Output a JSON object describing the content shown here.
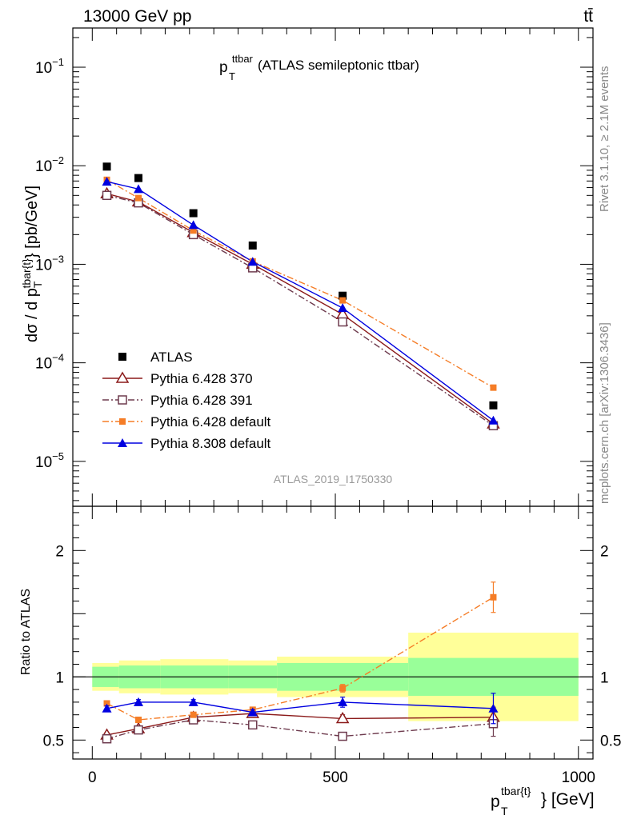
{
  "header": {
    "left": "13000 GeV pp",
    "right": "tt̄"
  },
  "side_labels": {
    "rivet": "Rivet 3.1.10, ≥ 2.1M events",
    "site": "mcplots.cern.ch [arXiv:1306.3436]"
  },
  "chart_data": {
    "type": "line",
    "title_main": "p",
    "title_sup": "ttbar",
    "title_sub": "T",
    "title_suffix": " (ATLAS semileptonic ttbar)",
    "analysis_id": "ATLAS_2019_I1750330",
    "ylabel": "dσ / d p_T^{tbar{t}} [pb/GeV]",
    "ratio_ylabel": "Ratio to ATLAS",
    "xlabel_main": "p",
    "xlabel_sup": "tbar{t}",
    "xlabel_sub": "T",
    "xlabel_unit": "} [GeV]",
    "xlim": [
      -40,
      1030
    ],
    "ylim_main": [
      3.5e-06,
      0.25
    ],
    "ylim_ratio": [
      0.35,
      2.35
    ],
    "x_ticks": [
      0,
      500,
      1000
    ],
    "main_y_ticks": [
      {
        "value": 0.1,
        "base": "10",
        "exp": "−1"
      },
      {
        "value": 0.01,
        "base": "10",
        "exp": "−2"
      },
      {
        "value": 0.001,
        "base": "10",
        "exp": "−3"
      },
      {
        "value": 0.0001,
        "base": "10",
        "exp": "−4"
      },
      {
        "value": 1e-05,
        "base": "10",
        "exp": "−5"
      }
    ],
    "ratio_y_ticks": [
      0.5,
      1,
      2
    ],
    "x": [
      30,
      95,
      208,
      330,
      515,
      825
    ],
    "bins": [
      [
        0,
        55
      ],
      [
        55,
        140
      ],
      [
        140,
        280
      ],
      [
        280,
        380
      ],
      [
        380,
        650
      ],
      [
        650,
        1000
      ]
    ],
    "data_values": [
      0.0098,
      0.0075,
      0.0033,
      0.00155,
      0.00048,
      3.7e-05
    ],
    "band_stat": [
      0.08,
      0.09,
      0.09,
      0.09,
      0.11,
      0.15
    ],
    "band_total": [
      0.11,
      0.13,
      0.14,
      0.13,
      0.16,
      0.35
    ],
    "series": [
      {
        "name": "ATLAS",
        "color": "#000000",
        "marker": "square-filled",
        "dash": "",
        "values": [
          0.0098,
          0.0075,
          0.0033,
          0.00155,
          0.00048,
          3.7e-05
        ],
        "ratio": [
          1,
          1,
          1,
          1,
          1,
          1
        ],
        "ratio_err": [
          0,
          0,
          0,
          0,
          0,
          0
        ]
      },
      {
        "name": "Pythia 6.428 370",
        "color": "#8b1a1a",
        "marker": "triangle-open",
        "dash": "",
        "values": [
          0.0052,
          0.0043,
          0.0021,
          0.001,
          0.00031,
          2.4e-05
        ],
        "ratio": [
          0.54,
          0.59,
          0.68,
          0.71,
          0.67,
          0.68
        ],
        "ratio_err": [
          0.02,
          0.02,
          0.02,
          0.02,
          0.03,
          0.08
        ]
      },
      {
        "name": "Pythia 6.428 391",
        "color": "#6e3b4e",
        "marker": "square-open",
        "dash": "8,3,2,3",
        "values": [
          0.005,
          0.0042,
          0.002,
          0.00092,
          0.00026,
          2.3e-05
        ],
        "ratio": [
          0.51,
          0.58,
          0.66,
          0.62,
          0.53,
          0.63
        ],
        "ratio_err": [
          0.02,
          0.02,
          0.02,
          0.02,
          0.03,
          0.1
        ]
      },
      {
        "name": "Pythia 6.428 default",
        "color": "#f57d27",
        "marker": "square-filled-small",
        "dash": "8,3,2,3",
        "values": [
          0.0072,
          0.0047,
          0.0022,
          0.00107,
          0.00043,
          5.6e-05
        ],
        "ratio": [
          0.79,
          0.66,
          0.7,
          0.74,
          0.91,
          1.63
        ],
        "ratio_err": [
          0.01,
          0.01,
          0.01,
          0.02,
          0.03,
          0.12
        ]
      },
      {
        "name": "Pythia 8.308 default",
        "color": "#0000e0",
        "marker": "triangle-filled",
        "dash": "",
        "values": [
          0.0069,
          0.0058,
          0.0025,
          0.00106,
          0.00036,
          2.6e-05
        ],
        "ratio": [
          0.75,
          0.8,
          0.8,
          0.72,
          0.8,
          0.75
        ],
        "ratio_err": [
          0.02,
          0.02,
          0.02,
          0.02,
          0.04,
          0.12
        ]
      }
    ]
  }
}
